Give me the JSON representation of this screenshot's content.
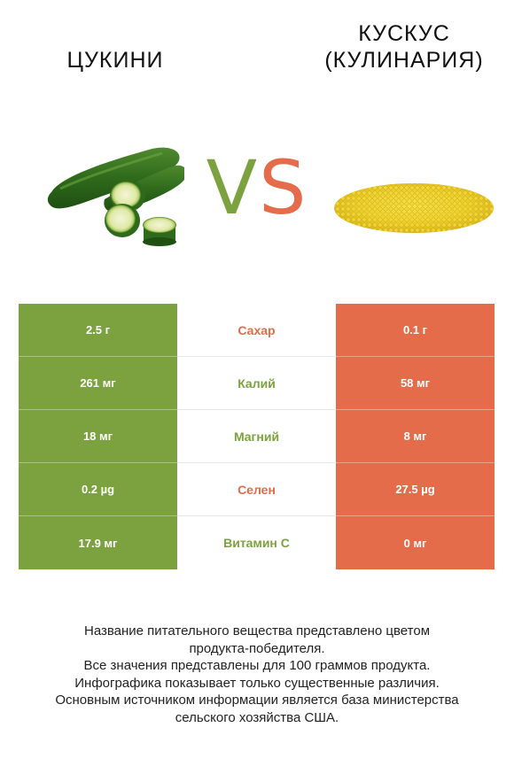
{
  "left_food": {
    "name": "ЦУКИНИ",
    "color": "#7ba23f",
    "image": "zucchini-image"
  },
  "right_food": {
    "name_line1": "КУСКУС",
    "name_line2": "(КУЛИНАРИЯ)",
    "color": "#e46c4b",
    "image": "couscous-image"
  },
  "vs": {
    "v": "V",
    "s": "S"
  },
  "comparison": [
    {
      "nutrient": "Сахар",
      "left": "2.5 г",
      "right": "0.1 г",
      "winner": "right",
      "winner_color": "#e46c4b"
    },
    {
      "nutrient": "Калий",
      "left": "261 мг",
      "right": "58 мг",
      "winner": "left",
      "winner_color": "#7ba23f"
    },
    {
      "nutrient": "Магний",
      "left": "18 мг",
      "right": "8 мг",
      "winner": "left",
      "winner_color": "#7ba23f"
    },
    {
      "nutrient": "Селен",
      "left": "0.2 µg",
      "right": "27.5 µg",
      "winner": "right",
      "winner_color": "#e46c4b"
    },
    {
      "nutrient": "Витамин C",
      "left": "17.9 мг",
      "right": "0 мг",
      "winner": "left",
      "winner_color": "#7ba23f"
    }
  ],
  "footer": {
    "line1": "Название питательного вещества представлено цветом",
    "line2": "продукта-победителя.",
    "line3_pre": "Все значения представлены для ",
    "line3_num": "100",
    "line3_post": " граммов продукта.",
    "line4": "Инфографика показывает только существенные различия.",
    "line5": "Основным источником информации является база министерства",
    "line6": "сельского хозяйства США."
  }
}
